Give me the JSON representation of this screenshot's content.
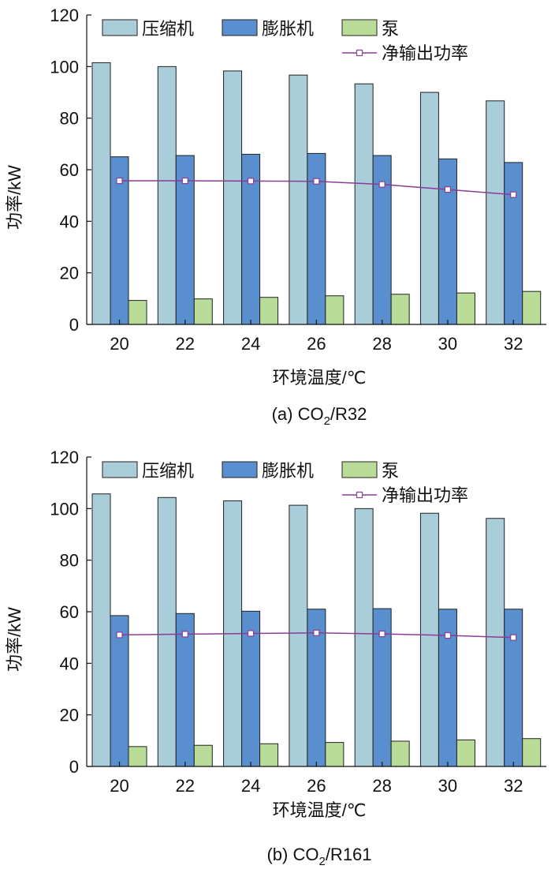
{
  "chart_data": [
    {
      "type": "bar",
      "caption_prefix": "(a) CO",
      "caption_sub": "2",
      "caption_suffix": "/R32",
      "xlabel": "环境温度/℃",
      "ylabel": "功率/kW",
      "ylim": [
        0,
        120
      ],
      "yticks": [
        0,
        20,
        40,
        60,
        80,
        100,
        120
      ],
      "categories": [
        "20",
        "22",
        "24",
        "26",
        "28",
        "30",
        "32"
      ],
      "series": [
        {
          "name": "压缩机",
          "kind": "bar",
          "color": "#a9cdd9",
          "values": [
            101.5,
            100,
            98.3,
            96.7,
            93.3,
            90,
            86.7
          ]
        },
        {
          "name": "膨胀机",
          "kind": "bar",
          "color": "#5a8fcf",
          "values": [
            65,
            65.5,
            66,
            66.3,
            65.5,
            64.2,
            62.8
          ]
        },
        {
          "name": "泵",
          "kind": "bar",
          "color": "#b9dd98",
          "values": [
            9.3,
            9.9,
            10.5,
            11.1,
            11.7,
            12.2,
            12.8
          ]
        },
        {
          "name": "净输出功率",
          "kind": "line",
          "color": "#8a3d94",
          "values": [
            55.7,
            55.7,
            55.6,
            55.5,
            54.3,
            52.3,
            50.3
          ]
        }
      ],
      "legend_position": "top",
      "grid": false
    },
    {
      "type": "bar",
      "caption_prefix": "(b) CO",
      "caption_sub": "2",
      "caption_suffix": "/R161",
      "xlabel": "环境温度/℃",
      "ylabel": "功率/kW",
      "ylim": [
        0,
        120
      ],
      "yticks": [
        0,
        20,
        40,
        60,
        80,
        100,
        120
      ],
      "categories": [
        "20",
        "22",
        "24",
        "26",
        "28",
        "30",
        "32"
      ],
      "series": [
        {
          "name": "压缩机",
          "kind": "bar",
          "color": "#a9cdd9",
          "values": [
            105.7,
            104.3,
            103,
            101.3,
            100,
            98.2,
            96.2
          ]
        },
        {
          "name": "膨胀机",
          "kind": "bar",
          "color": "#5a8fcf",
          "values": [
            58.5,
            59.3,
            60.2,
            61,
            61.2,
            61,
            61
          ]
        },
        {
          "name": "泵",
          "kind": "bar",
          "color": "#b9dd98",
          "values": [
            7.7,
            8.2,
            8.8,
            9.3,
            9.8,
            10.3,
            10.8
          ]
        },
        {
          "name": "净输出功率",
          "kind": "line",
          "color": "#8a3d94",
          "values": [
            51,
            51.3,
            51.6,
            51.8,
            51.4,
            50.8,
            50
          ]
        }
      ],
      "legend_position": "top",
      "grid": false
    }
  ]
}
